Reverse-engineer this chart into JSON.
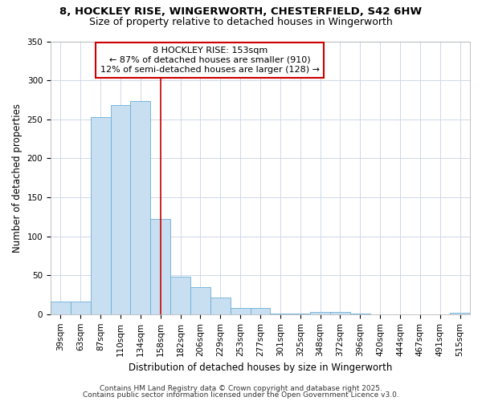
{
  "title_line1": "8, HOCKLEY RISE, WINGERWORTH, CHESTERFIELD, S42 6HW",
  "title_line2": "Size of property relative to detached houses in Wingerworth",
  "xlabel": "Distribution of detached houses by size in Wingerworth",
  "ylabel": "Number of detached properties",
  "categories": [
    "39sqm",
    "63sqm",
    "87sqm",
    "110sqm",
    "134sqm",
    "158sqm",
    "182sqm",
    "206sqm",
    "229sqm",
    "253sqm",
    "277sqm",
    "301sqm",
    "325sqm",
    "348sqm",
    "372sqm",
    "396sqm",
    "420sqm",
    "444sqm",
    "467sqm",
    "491sqm",
    "515sqm"
  ],
  "values": [
    16,
    16,
    253,
    268,
    273,
    122,
    48,
    35,
    21,
    8,
    8,
    1,
    1,
    3,
    3,
    1,
    0,
    0,
    0,
    0,
    2
  ],
  "bar_color": "#c8dff2",
  "bar_edge_color": "#6aaed6",
  "vline_x_index": 5,
  "vline_color": "#cc0000",
  "annotation_line1": "8 HOCKLEY RISE: 153sqm",
  "annotation_line2": "← 87% of detached houses are smaller (910)",
  "annotation_line3": "12% of semi-detached houses are larger (128) →",
  "annotation_box_color": "#cc0000",
  "ylim": [
    0,
    350
  ],
  "yticks": [
    0,
    50,
    100,
    150,
    200,
    250,
    300,
    350
  ],
  "footer_line1": "Contains HM Land Registry data © Crown copyright and database right 2025.",
  "footer_line2": "Contains public sector information licensed under the Open Government Licence v3.0.",
  "bg_color": "#ffffff",
  "grid_color": "#d0d8e8",
  "title_fontsize": 9.5,
  "subtitle_fontsize": 9,
  "axis_fontsize": 8.5,
  "tick_fontsize": 7.5,
  "footer_fontsize": 6.5,
  "annotation_fontsize": 8
}
